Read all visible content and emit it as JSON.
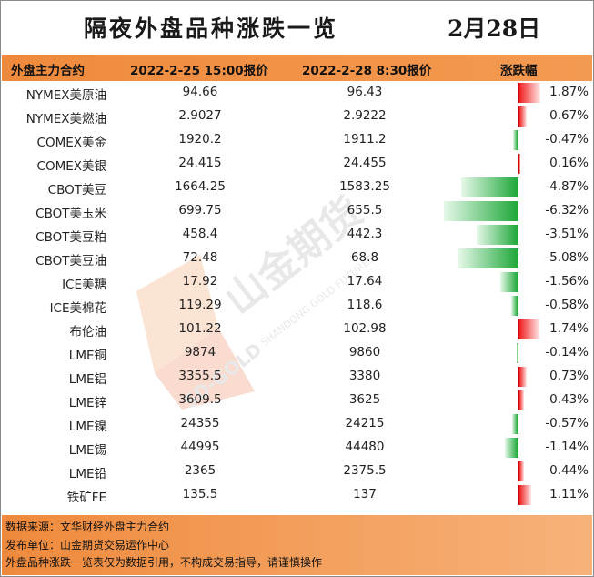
{
  "title": "隔夜外盘品种涨跌一览",
  "date": "2月28日",
  "header": {
    "name": "外盘主力合约",
    "prev": "2022-2-25 15:00报价",
    "curr": "2022-2-28 8:30报价",
    "change": "涨跌幅"
  },
  "rows": [
    {
      "name": "NYMEX美原油",
      "prev": "94.66",
      "curr": "96.43",
      "pct": "1.87%",
      "value": 1.87
    },
    {
      "name": "NYMEX美燃油",
      "prev": "2.9027",
      "curr": "2.9222",
      "pct": "0.67%",
      "value": 0.67
    },
    {
      "name": "COMEX美金",
      "prev": "1920.2",
      "curr": "1911.2",
      "pct": "-0.47%",
      "value": -0.47
    },
    {
      "name": "COMEX美银",
      "prev": "24.415",
      "curr": "24.455",
      "pct": "0.16%",
      "value": 0.16
    },
    {
      "name": "CBOT美豆",
      "prev": "1664.25",
      "curr": "1583.25",
      "pct": "-4.87%",
      "value": -4.87
    },
    {
      "name": "CBOT美玉米",
      "prev": "699.75",
      "curr": "655.5",
      "pct": "-6.32%",
      "value": -6.32
    },
    {
      "name": "CBOT美豆粕",
      "prev": "458.4",
      "curr": "442.3",
      "pct": "-3.51%",
      "value": -3.51
    },
    {
      "name": "CBOT美豆油",
      "prev": "72.48",
      "curr": "68.8",
      "pct": "-5.08%",
      "value": -5.08
    },
    {
      "name": "ICE美糖",
      "prev": "17.92",
      "curr": "17.64",
      "pct": "-1.56%",
      "value": -1.56
    },
    {
      "name": "ICE美棉花",
      "prev": "119.29",
      "curr": "118.6",
      "pct": "-0.58%",
      "value": -0.58
    },
    {
      "name": "布伦油",
      "prev": "101.22",
      "curr": "102.98",
      "pct": "1.74%",
      "value": 1.74
    },
    {
      "name": "LME铜",
      "prev": "9874",
      "curr": "9860",
      "pct": "-0.14%",
      "value": -0.14
    },
    {
      "name": "LME铝",
      "prev": "3355.5",
      "curr": "3380",
      "pct": "0.73%",
      "value": 0.73
    },
    {
      "name": "LME锌",
      "prev": "3609.5",
      "curr": "3625",
      "pct": "0.43%",
      "value": 0.43
    },
    {
      "name": "LME镍",
      "prev": "24355",
      "curr": "24215",
      "pct": "-0.57%",
      "value": -0.57
    },
    {
      "name": "LME锡",
      "prev": "44995",
      "curr": "44480",
      "pct": "-1.14%",
      "value": -1.14
    },
    {
      "name": "LME铅",
      "prev": "2365",
      "curr": "2375.5",
      "pct": "0.44%",
      "value": 0.44
    },
    {
      "name": "铁矿FE",
      "prev": "135.5",
      "curr": "137",
      "pct": "1.11%",
      "value": 1.11
    }
  ],
  "watermark": {
    "brand_cn": "山金期货",
    "brand_en": "SHANDONG GOLD FUTURES",
    "logo_text": "SD-GOLD"
  },
  "footer": {
    "source": "数据来源：文华财经外盘主力合约",
    "publisher": "发布单位：山金期货交易运作中心",
    "disclaimer": "外盘品种涨跌一览表仅为数据引用，不构成交易指导，请谨慎操作"
  },
  "colors": {
    "header_orange": "#ef8a3c",
    "rise_red": "#f01f1f",
    "fall_green": "#1fa83a"
  }
}
